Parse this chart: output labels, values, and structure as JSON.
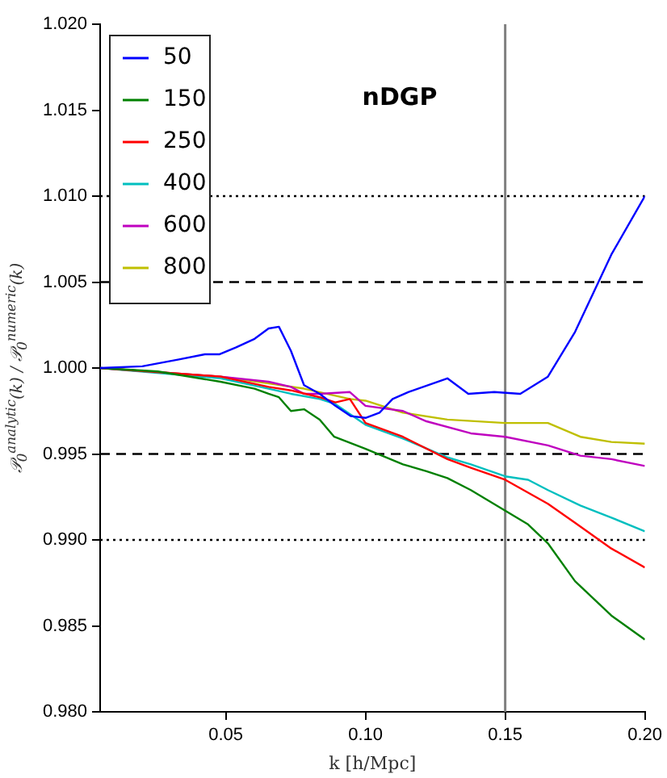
{
  "chart_data": {
    "type": "line",
    "xlabel": "k [h/Mpc]",
    "ylabel": "𝒫$_{0}$$^{analytic}$(k) / 𝒫$_{0}$$^{numeric}$(k)",
    "annotations": [
      "nDGP"
    ],
    "xlim": [
      0.005,
      0.2
    ],
    "xticks": [
      0.05,
      {
        "value": 0.1,
        "label": "0.10"
      },
      {
        "value": 0.15,
        "label": "0.15"
      },
      {
        "value": 0.2,
        "label": "0.20"
      }
    ],
    "ylim": [
      0.98,
      1.02
    ],
    "yticks": [
      {
        "value": 0.98,
        "label": "0.980"
      },
      {
        "value": 0.985,
        "label": "0.985"
      },
      {
        "value": 0.99,
        "label": "0.990"
      },
      {
        "value": 0.995,
        "label": "0.995"
      },
      {
        "value": 1.0,
        "label": "1.000"
      },
      {
        "value": 1.005,
        "label": "1.005"
      },
      {
        "value": 1.01,
        "label": "1.010"
      },
      {
        "value": 1.015,
        "label": "1.015"
      },
      {
        "value": 1.02,
        "label": "1.020"
      }
    ],
    "grid": false,
    "legend": "top left",
    "marker": "none",
    "line_style": "solid",
    "ref_lines": [
      {
        "axis": "y",
        "value": 1.01,
        "color": "#000000",
        "line_style": "dotted"
      },
      {
        "axis": "y",
        "value": 1.005,
        "color": "#000000",
        "line_style": "dashed"
      },
      {
        "axis": "y",
        "value": 0.995,
        "color": "#000000",
        "line_style": "dashed"
      },
      {
        "axis": "y",
        "value": 0.99,
        "color": "#000000",
        "line_style": "dotted"
      },
      {
        "axis": "x",
        "value": 0.15,
        "color": "#808080",
        "line_style": "solid"
      }
    ],
    "series": [
      {
        "name": "50",
        "color": "#0000ff",
        "x": [
          0.005,
          0.0201,
          0.0332,
          0.0425,
          0.0478,
          0.0537,
          0.0603,
          0.0653,
          0.069,
          0.0733,
          0.078,
          0.0836,
          0.0892,
          0.0948,
          0.1,
          0.105,
          0.1097,
          0.1153,
          0.1293,
          0.1368,
          0.1461,
          0.1554,
          0.1653,
          0.175,
          0.188,
          0.2
        ],
        "values": [
          1.0,
          1.0001,
          1.0005,
          1.0008,
          1.0008,
          1.0012,
          1.0017,
          1.0023,
          1.0024,
          1.001,
          0.999,
          0.9985,
          0.9978,
          0.9972,
          0.9971,
          0.9974,
          0.9982,
          0.9986,
          0.9994,
          0.9985,
          0.9986,
          0.9985,
          0.9995,
          1.0021,
          1.0066,
          1.01
        ]
      },
      {
        "name": "150",
        "color": "#008000",
        "x": [
          0.005,
          0.0257,
          0.0481,
          0.0603,
          0.0653,
          0.069,
          0.0733,
          0.078,
          0.0836,
          0.0888,
          0.1,
          0.1134,
          0.1218,
          0.1293,
          0.1377,
          0.15,
          0.1582,
          0.1653,
          0.175,
          0.188,
          0.2
        ],
        "values": [
          1.0,
          0.9998,
          0.9992,
          0.9988,
          0.9985,
          0.9983,
          0.9975,
          0.9976,
          0.997,
          0.996,
          0.9953,
          0.9944,
          0.994,
          0.9936,
          0.9929,
          0.9917,
          0.9909,
          0.9898,
          0.9876,
          0.9856,
          0.9842
        ]
      },
      {
        "name": "250",
        "color": "#ff0000",
        "x": [
          0.005,
          0.0481,
          0.0653,
          0.0733,
          0.0836,
          0.0892,
          0.0944,
          0.1,
          0.1134,
          0.1293,
          0.1377,
          0.15,
          0.1653,
          0.175,
          0.188,
          0.2
        ],
        "values": [
          1.0,
          0.9995,
          0.9989,
          0.9987,
          0.9983,
          0.998,
          0.9982,
          0.9968,
          0.996,
          0.9947,
          0.9942,
          0.9935,
          0.9921,
          0.991,
          0.9895,
          0.9884
        ]
      },
      {
        "name": "400",
        "color": "#00bfbf",
        "x": [
          0.005,
          0.0481,
          0.0653,
          0.0733,
          0.0836,
          0.0892,
          0.1,
          0.1134,
          0.1293,
          0.1377,
          0.15,
          0.1582,
          0.1653,
          0.1769,
          0.188,
          0.2
        ],
        "values": [
          1.0,
          0.9994,
          0.9988,
          0.9985,
          0.9982,
          0.9979,
          0.9967,
          0.9959,
          0.9948,
          0.9944,
          0.9937,
          0.9935,
          0.9929,
          0.992,
          0.9913,
          0.9905
        ]
      },
      {
        "name": "600",
        "color": "#bf00bf",
        "x": [
          0.005,
          0.0481,
          0.0653,
          0.0733,
          0.078,
          0.0836,
          0.0944,
          0.1,
          0.1134,
          0.1218,
          0.1377,
          0.15,
          0.1653,
          0.1769,
          0.188,
          0.2
        ],
        "values": [
          1.0,
          0.9995,
          0.9992,
          0.9989,
          0.9985,
          0.9985,
          0.9986,
          0.9978,
          0.9975,
          0.9969,
          0.9962,
          0.996,
          0.9955,
          0.9949,
          0.9947,
          0.9943
        ]
      },
      {
        "name": "800",
        "color": "#bfbf00",
        "x": [
          0.005,
          0.0481,
          0.0653,
          0.078,
          0.0944,
          0.1,
          0.1134,
          0.1293,
          0.15,
          0.1653,
          0.1769,
          0.188,
          0.2
        ],
        "values": [
          1.0,
          0.9995,
          0.9991,
          0.9988,
          0.9982,
          0.9981,
          0.9974,
          0.997,
          0.9968,
          0.9968,
          0.996,
          0.9957,
          0.9956
        ]
      }
    ]
  }
}
